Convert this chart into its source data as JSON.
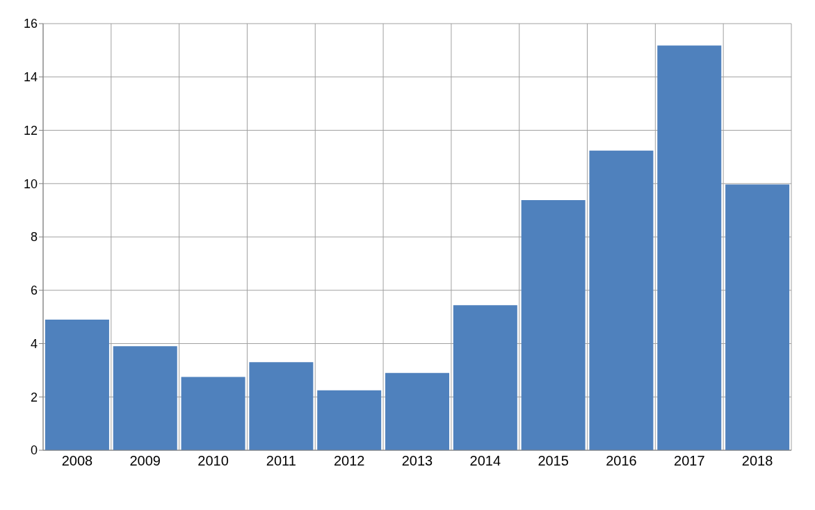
{
  "chart_data": {
    "type": "bar",
    "categories": [
      "2008",
      "2009",
      "2010",
      "2011",
      "2012",
      "2013",
      "2014",
      "2015",
      "2016",
      "2017",
      "2018"
    ],
    "values": [
      4.9,
      3.9,
      2.75,
      3.3,
      2.25,
      2.9,
      5.44,
      9.38,
      11.24,
      15.18,
      9.97
    ],
    "color": "#4f81bd",
    "ylim": [
      0,
      16
    ],
    "yticks": [
      0,
      2,
      4,
      6,
      8,
      10,
      12,
      14,
      16
    ],
    "grid": true
  }
}
